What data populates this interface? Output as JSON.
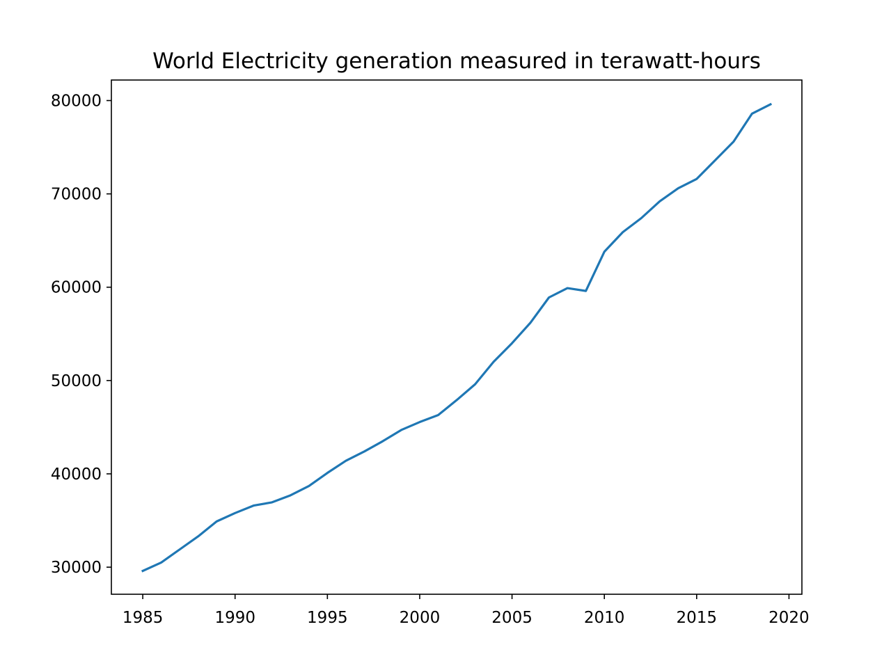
{
  "chart_data": {
    "type": "line",
    "title": "World Electricity generation measured in terawatt-hours",
    "xlabel": "",
    "ylabel": "",
    "xlim": [
      1983.3,
      2020.7
    ],
    "ylim": [
      27100,
      82200
    ],
    "x_ticks": [
      1985,
      1990,
      1995,
      2000,
      2005,
      2010,
      2015,
      2020
    ],
    "y_ticks": [
      30000,
      40000,
      50000,
      60000,
      70000,
      80000
    ],
    "grid": false,
    "legend": "none",
    "series": [
      {
        "color": "#1f77b4",
        "x": [
          1985,
          1986,
          1987,
          1988,
          1989,
          1990,
          1991,
          1992,
          1993,
          1994,
          1995,
          1996,
          1997,
          1998,
          1999,
          2000,
          2001,
          2002,
          2003,
          2004,
          2005,
          2006,
          2007,
          2008,
          2009,
          2010,
          2011,
          2012,
          2013,
          2014,
          2015,
          2016,
          2017,
          2018,
          2019
        ],
        "values": [
          29600,
          30500,
          31900,
          33300,
          34900,
          35800,
          36600,
          36950,
          37700,
          38700,
          40100,
          41400,
          42400,
          43500,
          44700,
          45550,
          46300,
          47900,
          49600,
          52000,
          54000,
          56200,
          58900,
          59900,
          59600,
          63800,
          65900,
          67400,
          69200,
          70600,
          71600,
          73600,
          75600,
          78600,
          79600
        ]
      }
    ]
  }
}
